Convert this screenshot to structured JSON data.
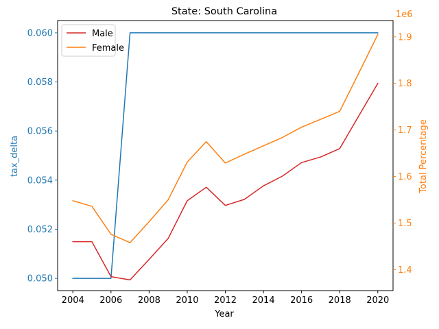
{
  "chart_data": {
    "type": "line",
    "title": "State: South Carolina",
    "xlabel": "Year",
    "ylabel_left": "tax_delta",
    "ylabel_right": "Total Percentage",
    "right_offset_text": "1e6",
    "x": [
      2004,
      2005,
      2006,
      2007,
      2008,
      2009,
      2010,
      2011,
      2012,
      2013,
      2014,
      2015,
      2016,
      2017,
      2018,
      2019,
      2020
    ],
    "xlim": [
      2003.2,
      2020.8
    ],
    "x_ticks": [
      2004,
      2006,
      2008,
      2010,
      2012,
      2014,
      2016,
      2018,
      2020
    ],
    "left_axis": {
      "ylim": [
        0.0495,
        0.0605
      ],
      "ticks": [
        0.05,
        0.052,
        0.054,
        0.056,
        0.058,
        0.06
      ],
      "tick_labels": [
        "0.050",
        "0.052",
        "0.054",
        "0.056",
        "0.058",
        "0.060"
      ],
      "color": "#1f77b4"
    },
    "right_axis": {
      "ylim": [
        1.355,
        1.935
      ],
      "ticks": [
        1.4,
        1.5,
        1.6,
        1.7,
        1.8,
        1.9
      ],
      "tick_labels": [
        "1.4",
        "1.5",
        "1.6",
        "1.7",
        "1.8",
        "1.9"
      ],
      "color": "#ff7f0e"
    },
    "legend_position": "upper-left",
    "series": [
      {
        "key": "tax_delta",
        "axis": "left",
        "color": "#1f77b4",
        "in_legend": false,
        "values": [
          0.05,
          0.05,
          0.05,
          0.06,
          0.06,
          0.06,
          0.06,
          0.06,
          0.06,
          0.06,
          0.06,
          0.06,
          0.06,
          0.06,
          0.06,
          0.06,
          0.06
        ]
      },
      {
        "key": "male",
        "name": "Male",
        "axis": "right",
        "color": "#d62728",
        "in_legend": true,
        "values": [
          1.46,
          1.46,
          1.385,
          1.378,
          1.422,
          1.467,
          1.548,
          1.577,
          1.538,
          1.551,
          1.58,
          1.601,
          1.63,
          1.642,
          1.66,
          1.73,
          1.8
        ]
      },
      {
        "key": "female",
        "name": "Female",
        "axis": "right",
        "color": "#ff7f0e",
        "in_legend": true,
        "values": [
          1.548,
          1.536,
          1.476,
          1.458,
          1.503,
          1.55,
          1.631,
          1.675,
          1.629,
          1.648,
          1.666,
          1.684,
          1.706,
          1.723,
          1.74,
          1.822,
          1.905
        ]
      }
    ]
  }
}
